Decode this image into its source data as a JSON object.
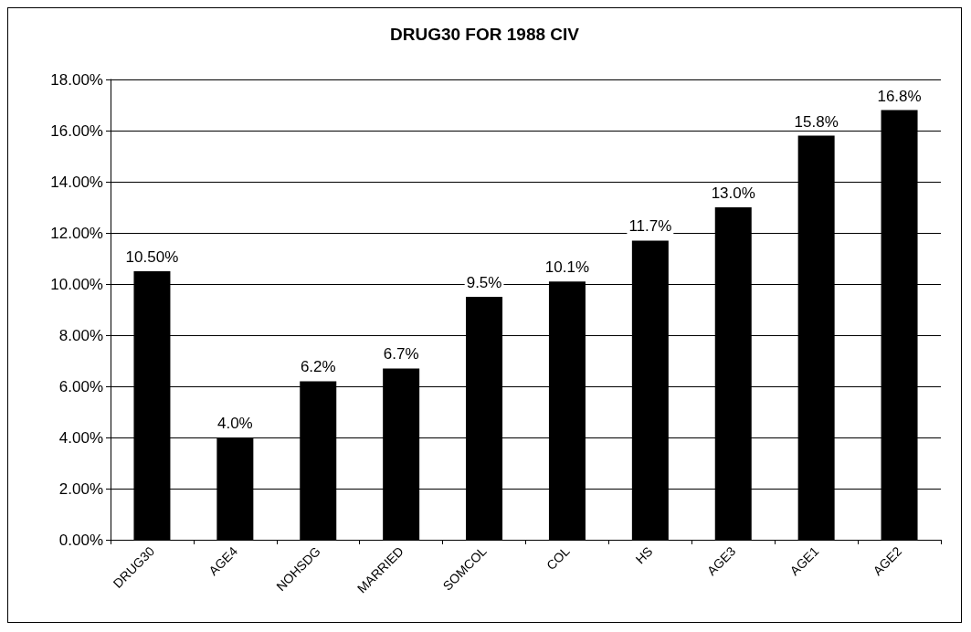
{
  "chart_data": {
    "type": "bar",
    "title": "DRUG30 FOR 1988 CIV",
    "categories": [
      "DRUG30",
      "AGE4",
      "NOHSDG",
      "MARRIED",
      "SOMCOL",
      "COL",
      "HS",
      "AGE3",
      "AGE1",
      "AGE2"
    ],
    "values": [
      10.5,
      4.0,
      6.2,
      6.7,
      9.5,
      10.1,
      11.7,
      13.0,
      15.8,
      16.8
    ],
    "value_labels": [
      "10.50%",
      "4.0%",
      "6.2%",
      "6.7%",
      "9.5%",
      "10.1%",
      "11.7%",
      "13.0%",
      "15.8%",
      "16.8%"
    ],
    "color": "#000000",
    "ylim": [
      0,
      18
    ],
    "yticks": [
      {
        "value": 0,
        "label": "0.00%"
      },
      {
        "value": 2,
        "label": "2.00%"
      },
      {
        "value": 4,
        "label": "4.00%"
      },
      {
        "value": 6,
        "label": "6.00%"
      },
      {
        "value": 8,
        "label": "8.00%"
      },
      {
        "value": 10,
        "label": "10.00%"
      },
      {
        "value": 12,
        "label": "12.00%"
      },
      {
        "value": 14,
        "label": "14.00%"
      },
      {
        "value": 16,
        "label": "16.00%"
      },
      {
        "value": 18,
        "label": "18.00%"
      }
    ],
    "grid": "y"
  }
}
